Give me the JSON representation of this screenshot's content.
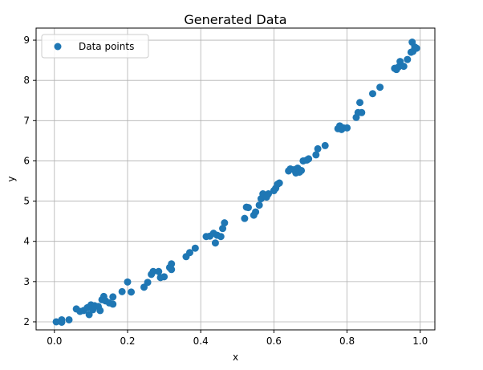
{
  "chart_data": {
    "type": "scatter",
    "title": "Generated Data",
    "xlabel": "x",
    "ylabel": "y",
    "xlim": [
      -0.05,
      1.04
    ],
    "ylim": [
      1.8,
      9.3
    ],
    "xticks": [
      0.0,
      0.2,
      0.4,
      0.6,
      0.8,
      1.0
    ],
    "xtick_labels": [
      "0.0",
      "0.2",
      "0.4",
      "0.6",
      "0.8",
      "1.0"
    ],
    "yticks": [
      2,
      3,
      4,
      5,
      6,
      7,
      8,
      9
    ],
    "ytick_labels": [
      "2",
      "3",
      "4",
      "5",
      "6",
      "7",
      "8",
      "9"
    ],
    "grid": true,
    "legend_position": "upper-left",
    "colors": {
      "series": "#1f77b4",
      "grid": "#b0b0b0"
    },
    "series": [
      {
        "name": "Data points",
        "points": [
          [
            0.005,
            2.0
          ],
          [
            0.02,
            2.05
          ],
          [
            0.02,
            1.99
          ],
          [
            0.04,
            2.05
          ],
          [
            0.06,
            2.32
          ],
          [
            0.07,
            2.26
          ],
          [
            0.08,
            2.28
          ],
          [
            0.09,
            2.35
          ],
          [
            0.095,
            2.18
          ],
          [
            0.1,
            2.42
          ],
          [
            0.105,
            2.3
          ],
          [
            0.11,
            2.4
          ],
          [
            0.12,
            2.38
          ],
          [
            0.125,
            2.28
          ],
          [
            0.13,
            2.55
          ],
          [
            0.135,
            2.63
          ],
          [
            0.14,
            2.52
          ],
          [
            0.15,
            2.47
          ],
          [
            0.16,
            2.44
          ],
          [
            0.16,
            2.62
          ],
          [
            0.185,
            2.75
          ],
          [
            0.2,
            2.99
          ],
          [
            0.21,
            2.74
          ],
          [
            0.245,
            2.86
          ],
          [
            0.255,
            2.98
          ],
          [
            0.265,
            3.18
          ],
          [
            0.27,
            3.25
          ],
          [
            0.285,
            3.25
          ],
          [
            0.29,
            3.1
          ],
          [
            0.3,
            3.12
          ],
          [
            0.315,
            3.35
          ],
          [
            0.32,
            3.44
          ],
          [
            0.32,
            3.3
          ],
          [
            0.36,
            3.62
          ],
          [
            0.37,
            3.72
          ],
          [
            0.385,
            3.83
          ],
          [
            0.415,
            4.12
          ],
          [
            0.425,
            4.13
          ],
          [
            0.435,
            4.2
          ],
          [
            0.44,
            3.96
          ],
          [
            0.445,
            4.15
          ],
          [
            0.455,
            4.12
          ],
          [
            0.46,
            4.32
          ],
          [
            0.465,
            4.46
          ],
          [
            0.52,
            4.57
          ],
          [
            0.525,
            4.85
          ],
          [
            0.53,
            4.84
          ],
          [
            0.545,
            4.65
          ],
          [
            0.55,
            4.73
          ],
          [
            0.56,
            4.9
          ],
          [
            0.565,
            5.06
          ],
          [
            0.57,
            5.18
          ],
          [
            0.58,
            5.1
          ],
          [
            0.585,
            5.18
          ],
          [
            0.6,
            5.26
          ],
          [
            0.605,
            5.32
          ],
          [
            0.61,
            5.42
          ],
          [
            0.615,
            5.45
          ],
          [
            0.64,
            5.75
          ],
          [
            0.645,
            5.8
          ],
          [
            0.655,
            5.78
          ],
          [
            0.66,
            5.7
          ],
          [
            0.665,
            5.82
          ],
          [
            0.67,
            5.72
          ],
          [
            0.675,
            5.76
          ],
          [
            0.68,
            6.0
          ],
          [
            0.69,
            6.02
          ],
          [
            0.695,
            6.05
          ],
          [
            0.715,
            6.15
          ],
          [
            0.72,
            6.3
          ],
          [
            0.74,
            6.38
          ],
          [
            0.775,
            6.8
          ],
          [
            0.78,
            6.87
          ],
          [
            0.785,
            6.78
          ],
          [
            0.79,
            6.82
          ],
          [
            0.8,
            6.82
          ],
          [
            0.825,
            7.08
          ],
          [
            0.83,
            7.2
          ],
          [
            0.835,
            7.45
          ],
          [
            0.84,
            7.2
          ],
          [
            0.87,
            7.67
          ],
          [
            0.89,
            7.83
          ],
          [
            0.93,
            8.3
          ],
          [
            0.935,
            8.27
          ],
          [
            0.94,
            8.33
          ],
          [
            0.945,
            8.47
          ],
          [
            0.955,
            8.35
          ],
          [
            0.965,
            8.52
          ],
          [
            0.975,
            8.7
          ],
          [
            0.978,
            8.95
          ],
          [
            0.98,
            8.72
          ],
          [
            0.985,
            8.83
          ],
          [
            0.99,
            8.8
          ]
        ]
      }
    ]
  }
}
